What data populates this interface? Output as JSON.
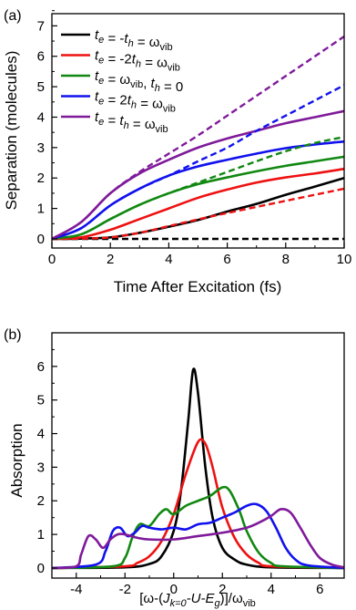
{
  "chart_data": [
    {
      "panel_label": "(a)",
      "type": "line",
      "xlabel": "Time After Excitation (fs)",
      "ylabel": "Separation (molecules)",
      "xlim": [
        0,
        10
      ],
      "ylim": [
        -0.3,
        7.4
      ],
      "xticks": [
        "0",
        "2",
        "4",
        "6",
        "8",
        "10"
      ],
      "yticks": [
        "0",
        "1",
        "2",
        "3",
        "4",
        "5",
        "6",
        "7"
      ],
      "legend_position": "top-left",
      "series": [
        {
          "name": "t_e = -t_h = ω_vib",
          "color": "#000000",
          "dash": false,
          "x": [
            0,
            1,
            2,
            3,
            4,
            5,
            6,
            7,
            8,
            9,
            10
          ],
          "y": [
            0,
            0.01,
            0.05,
            0.2,
            0.4,
            0.62,
            0.9,
            1.15,
            1.45,
            1.72,
            2.0
          ]
        },
        {
          "name": "t_e = -2t_h = ω_vib",
          "color": "#ee1111",
          "dash": false,
          "x": [
            0,
            1,
            2,
            3,
            4,
            5,
            6,
            7,
            8,
            9,
            10
          ],
          "y": [
            0,
            0.05,
            0.3,
            0.65,
            1.0,
            1.35,
            1.62,
            1.85,
            2.02,
            2.15,
            2.3
          ]
        },
        {
          "name": "t_e = ω_vib, t_h = 0",
          "color": "#118811",
          "dash": false,
          "x": [
            0,
            1,
            2,
            3,
            4,
            5,
            6,
            7,
            8,
            9,
            10
          ],
          "y": [
            0,
            0.15,
            0.65,
            1.12,
            1.5,
            1.8,
            2.02,
            2.22,
            2.4,
            2.55,
            2.7
          ]
        },
        {
          "name": "t_e = 2t_h = ω_vib",
          "color": "#1111ee",
          "dash": false,
          "x": [
            0,
            1,
            2,
            3,
            4,
            5,
            6,
            7,
            8,
            9,
            10
          ],
          "y": [
            0,
            0.35,
            1.1,
            1.65,
            2.08,
            2.38,
            2.6,
            2.8,
            2.98,
            3.1,
            3.2
          ]
        },
        {
          "name": "t_e = t_h = ω_vib",
          "color": "#7f1a9a",
          "dash": false,
          "x": [
            0,
            1,
            2,
            3,
            4,
            5,
            6,
            7,
            8,
            9,
            10
          ],
          "y": [
            0,
            0.55,
            1.5,
            2.15,
            2.6,
            3.0,
            3.3,
            3.55,
            3.8,
            4.0,
            4.2
          ]
        },
        {
          "color": "#000000",
          "dash": true,
          "x": [
            0,
            2,
            4,
            6,
            8,
            10
          ],
          "y": [
            0,
            0,
            0,
            0,
            0,
            0
          ]
        },
        {
          "color": "#ee1111",
          "dash": true,
          "x": [
            0,
            1,
            2,
            3,
            4,
            5,
            6,
            7,
            8,
            9,
            10
          ],
          "y": [
            0,
            0.01,
            0.05,
            0.2,
            0.42,
            0.64,
            0.85,
            1.05,
            1.25,
            1.45,
            1.65
          ]
        },
        {
          "color": "#118811",
          "dash": true,
          "x": [
            0,
            1,
            2,
            3,
            4,
            5,
            6,
            7,
            8,
            9,
            10
          ],
          "y": [
            0,
            0.15,
            0.65,
            1.12,
            1.5,
            1.85,
            2.2,
            2.55,
            2.88,
            3.15,
            3.35
          ]
        },
        {
          "color": "#1111ee",
          "dash": true,
          "x": [
            0,
            1,
            2,
            3,
            4,
            5,
            6,
            7,
            8,
            9,
            10
          ],
          "y": [
            0,
            0.35,
            1.1,
            1.65,
            2.08,
            2.55,
            3.0,
            3.55,
            4.05,
            4.55,
            5.05
          ]
        },
        {
          "color": "#7f1a9a",
          "dash": true,
          "x": [
            0,
            1,
            2,
            3,
            4,
            5,
            6,
            7,
            8,
            9,
            10
          ],
          "y": [
            0,
            0.55,
            1.5,
            2.2,
            2.8,
            3.4,
            4.05,
            4.7,
            5.35,
            6.0,
            6.65
          ]
        }
      ]
    },
    {
      "panel_label": "(b)",
      "type": "line",
      "xlabel": "[ω-(J_k=0-U-E_g)]/ω_vib",
      "ylabel": "Absorption",
      "xlim": [
        -5,
        7
      ],
      "ylim": [
        -0.3,
        7.0
      ],
      "xticks": [
        "-4",
        "-2",
        "0",
        "2",
        "4",
        "6"
      ],
      "yticks": [
        "0",
        "1",
        "2",
        "3",
        "4",
        "5",
        "6"
      ],
      "series": [
        {
          "color": "#000000",
          "x": [
            -5,
            -2,
            -1,
            -0.5,
            0,
            0.3,
            0.6,
            0.8,
            1.0,
            1.3,
            1.6,
            2,
            2.5,
            3,
            4,
            7
          ],
          "y": [
            0,
            0.02,
            0.12,
            0.35,
            1.1,
            2.3,
            4.4,
            5.9,
            5.2,
            3.0,
            1.5,
            0.6,
            0.25,
            0.1,
            0.02,
            0
          ]
        },
        {
          "color": "#ee1111",
          "x": [
            -5,
            -2,
            -1.5,
            -1,
            -0.5,
            0,
            0.5,
            1.0,
            1.3,
            1.6,
            2,
            2.5,
            3,
            3.5,
            4,
            7
          ],
          "y": [
            0,
            0.05,
            0.15,
            0.35,
            0.8,
            1.6,
            2.8,
            3.75,
            3.7,
            3.0,
            1.8,
            0.9,
            0.4,
            0.15,
            0.05,
            0
          ]
        },
        {
          "color": "#118811",
          "x": [
            -5,
            -2.5,
            -2,
            -1.7,
            -1.4,
            -1,
            -0.6,
            -0.3,
            0,
            0.5,
            1,
            1.5,
            2,
            2.3,
            2.7,
            3,
            3.5,
            4,
            4.5,
            7
          ],
          "y": [
            0,
            0.05,
            0.3,
            0.9,
            1.3,
            1.25,
            1.6,
            1.75,
            1.6,
            1.85,
            2.0,
            2.15,
            2.4,
            2.3,
            1.7,
            1.1,
            0.45,
            0.15,
            0.05,
            0
          ]
        },
        {
          "color": "#1111ee",
          "x": [
            -5,
            -3.2,
            -2.8,
            -2.5,
            -2.2,
            -1.9,
            -1.6,
            -1.3,
            -1,
            -0.5,
            0,
            0.5,
            1,
            1.5,
            2,
            2.5,
            3,
            3.4,
            3.8,
            4.2,
            4.6,
            5,
            5.5,
            7
          ],
          "y": [
            0,
            0.1,
            0.5,
            1.1,
            1.2,
            0.95,
            1.05,
            1.25,
            1.2,
            1.15,
            1.2,
            1.15,
            1.3,
            1.35,
            1.5,
            1.65,
            1.85,
            1.9,
            1.7,
            1.2,
            0.6,
            0.25,
            0.08,
            0
          ]
        },
        {
          "color": "#7f1a9a",
          "x": [
            -5,
            -4,
            -3.8,
            -3.5,
            -3.2,
            -2.9,
            -2.6,
            -2.3,
            -2,
            -1.5,
            -1,
            0,
            1,
            2,
            3,
            3.5,
            4,
            4.4,
            4.8,
            5.2,
            5.6,
            6,
            6.5,
            7
          ],
          "y": [
            0,
            0.05,
            0.4,
            0.95,
            0.85,
            0.6,
            0.85,
            1.0,
            1.0,
            0.9,
            0.85,
            0.85,
            0.95,
            1.05,
            1.2,
            1.35,
            1.55,
            1.75,
            1.65,
            1.2,
            0.7,
            0.3,
            0.1,
            0.02
          ]
        }
      ]
    }
  ]
}
